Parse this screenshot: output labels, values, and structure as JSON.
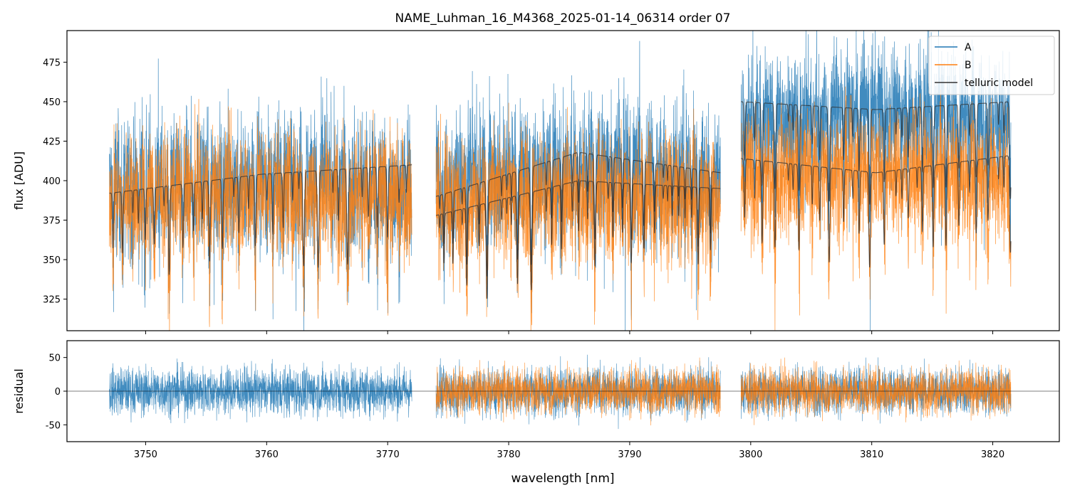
{
  "chart_data": [
    {
      "panel": "main",
      "type": "line",
      "title": "NAME_Luhman_16_M4368_2025-01-14_06314  order 07",
      "xlabel": "",
      "ylabel": "flux [ADU]",
      "xlim": [
        3743.5,
        3825.5
      ],
      "ylim": [
        305,
        495
      ],
      "yticks": [
        325,
        350,
        375,
        400,
        425,
        450,
        475
      ],
      "xticks": [
        3750,
        3760,
        3770,
        3780,
        3790,
        3800,
        3810,
        3820
      ],
      "legend_position": "top-right",
      "legend": [
        "A",
        "B",
        "telluric model"
      ],
      "segments": [
        {
          "range": [
            3747.0,
            3772.0
          ],
          "A_level": 395,
          "B_level": 390,
          "model_A": [
            392,
            404,
            410
          ],
          "model_B": null
        },
        {
          "range": [
            3774.0,
            3797.5
          ],
          "A_level": 402,
          "B_level": 388,
          "model_A": [
            390,
            418,
            405
          ],
          "model_B": [
            378,
            400,
            395
          ]
        },
        {
          "range": [
            3799.2,
            3821.5
          ],
          "A_level": 438,
          "B_level": 402,
          "model_A": [
            450,
            445,
            450
          ],
          "model_B": [
            414,
            405,
            416
          ]
        }
      ],
      "series": [
        {
          "name": "A",
          "color": "#1f77b4",
          "description": "noisy observed spectrum, nod A"
        },
        {
          "name": "B",
          "color": "#ff7f0e",
          "description": "noisy observed spectrum, nod B"
        },
        {
          "name": "telluric model",
          "color": "#333333",
          "description": "smooth model with deep absorption lines"
        }
      ]
    },
    {
      "panel": "residual",
      "type": "line",
      "xlabel": "wavelength [nm]",
      "ylabel": "residual",
      "xlim": [
        3743.5,
        3825.5
      ],
      "ylim": [
        -75,
        75
      ],
      "yticks": [
        -50,
        0,
        50
      ],
      "xticks": [
        3750,
        3760,
        3770,
        3780,
        3790,
        3800,
        3810,
        3820
      ],
      "series": [
        {
          "name": "A",
          "color": "#1f77b4",
          "noise_amplitude": 30
        },
        {
          "name": "B",
          "color": "#ff7f0e",
          "noise_amplitude": 30,
          "segments_present": [
            1,
            2
          ]
        }
      ]
    }
  ]
}
